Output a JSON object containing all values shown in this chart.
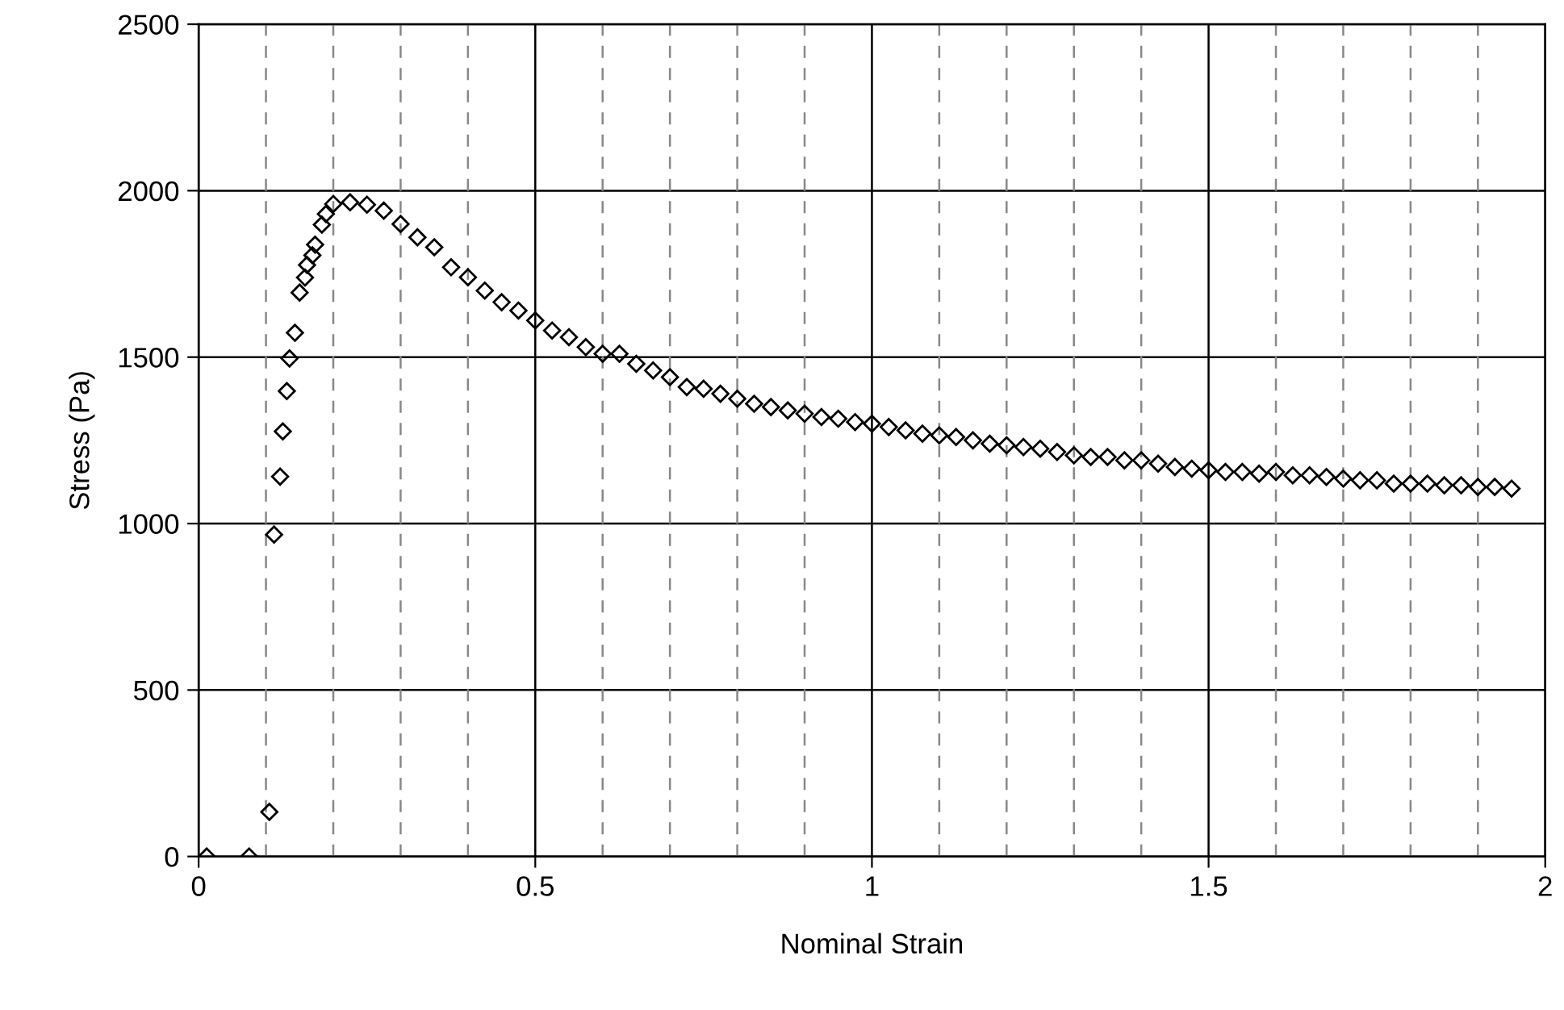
{
  "chart_data": {
    "type": "scatter",
    "xlabel": "Nominal Strain",
    "ylabel": "Stress (Pa)",
    "xlim": [
      0,
      2
    ],
    "xticks": [
      0,
      0.5,
      1,
      1.5,
      2
    ],
    "ylim": [
      0,
      2500
    ],
    "yticks": [
      0,
      500,
      1000,
      1500,
      2000,
      2500
    ],
    "grid": true,
    "marker": "diamond",
    "series": [
      {
        "color": "#000000",
        "x": [
          0.012,
          0.075,
          0.105,
          0.112,
          0.121,
          0.125,
          0.131,
          0.135,
          0.143,
          0.15,
          0.158,
          0.161,
          0.169,
          0.173,
          0.183,
          0.189,
          0.2,
          0.225,
          0.25,
          0.275,
          0.3,
          0.325,
          0.35,
          0.375,
          0.4,
          0.425,
          0.45,
          0.475,
          0.5,
          0.525,
          0.55,
          0.575,
          0.6,
          0.625,
          0.65,
          0.675,
          0.7,
          0.725,
          0.75,
          0.775,
          0.8,
          0.825,
          0.85,
          0.875,
          0.9,
          0.925,
          0.95,
          0.975,
          1.0,
          1.025,
          1.05,
          1.075,
          1.1,
          1.125,
          1.15,
          1.175,
          1.2,
          1.225,
          1.25,
          1.275,
          1.3,
          1.325,
          1.35,
          1.375,
          1.4,
          1.425,
          1.45,
          1.475,
          1.5,
          1.525,
          1.55,
          1.575,
          1.6,
          1.625,
          1.65,
          1.675,
          1.7,
          1.725,
          1.75,
          1.775,
          1.8,
          1.825,
          1.85,
          1.875,
          1.9,
          1.925,
          1.95
        ],
        "values": [
          0,
          0,
          134,
          967,
          1141,
          1277,
          1398,
          1496,
          1573,
          1694,
          1739,
          1777,
          1806,
          1838,
          1898,
          1930,
          1960,
          1965,
          1958,
          1940,
          1900,
          1860,
          1830,
          1770,
          1740,
          1700,
          1665,
          1640,
          1610,
          1580,
          1560,
          1530,
          1510,
          1510,
          1480,
          1460,
          1440,
          1410,
          1405,
          1390,
          1375,
          1360,
          1350,
          1340,
          1330,
          1320,
          1315,
          1305,
          1300,
          1290,
          1280,
          1270,
          1265,
          1260,
          1250,
          1240,
          1235,
          1230,
          1225,
          1215,
          1205,
          1200,
          1200,
          1190,
          1190,
          1180,
          1170,
          1165,
          1160,
          1155,
          1155,
          1150,
          1155,
          1145,
          1145,
          1140,
          1135,
          1130,
          1130,
          1120,
          1120,
          1120,
          1115,
          1115,
          1110,
          1110,
          1105
        ]
      }
    ]
  }
}
